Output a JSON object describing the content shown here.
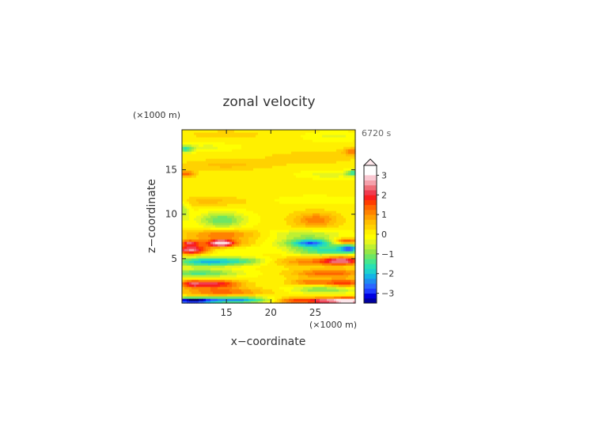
{
  "chart_data": {
    "type": "heatmap",
    "title": "zonal velocity",
    "xlabel": "x−coordinate",
    "ylabel": "z−coordinate",
    "x_unit": "(×1000 m)",
    "y_unit": "(×1000 m)",
    "time_label": "6720 s",
    "xlim": [
      10.0,
      29.5
    ],
    "ylim": [
      0.0,
      19.5
    ],
    "x_ticks": [
      15,
      20,
      25
    ],
    "x_tick_labels": [
      "15",
      "20",
      "25"
    ],
    "y_ticks": [
      5,
      10,
      15
    ],
    "y_tick_labels": [
      "5",
      "10",
      "15"
    ],
    "colorbar": {
      "min": -3.5,
      "max": 3.5,
      "step": 0.25,
      "tick_values": [
        3,
        2,
        1,
        0,
        -1,
        -2,
        -3
      ],
      "tick_labels": [
        "3",
        "2",
        "1",
        "0",
        "−1",
        "−2",
        "−3"
      ],
      "extend_max": true,
      "colors": [
        "#000066",
        "#0000a0",
        "#0000e0",
        "#1e3cff",
        "#2a66ff",
        "#1e8cf0",
        "#14b4e6",
        "#1ed2cc",
        "#28e0b4",
        "#46e68c",
        "#6ee664",
        "#96e646",
        "#bef032",
        "#e6f51e",
        "#ffff00",
        "#fff000",
        "#ffd200",
        "#ffbe00",
        "#ffa000",
        "#ff8200",
        "#ff6400",
        "#ff3c00",
        "#fa1e1e",
        "#f03c50",
        "#f06e78",
        "#f5a0aa",
        "#fac8d2",
        "#fde6ea"
      ]
    },
    "background_u": 0.08,
    "features": [
      {
        "x": 11.0,
        "z": 0.3,
        "sx": 2.5,
        "sz": 0.35,
        "u": -3.6
      },
      {
        "x": 16.0,
        "z": 0.4,
        "sx": 3.5,
        "sz": 0.35,
        "u": -2.5
      },
      {
        "x": 22.5,
        "z": 0.3,
        "sx": 2.0,
        "sz": 0.35,
        "u": 1.4
      },
      {
        "x": 26.5,
        "z": 0.3,
        "sx": 2.5,
        "sz": 0.35,
        "u": 2.6
      },
      {
        "x": 28.8,
        "z": 0.3,
        "sx": 1.2,
        "sz": 0.35,
        "u": 3.1
      },
      {
        "x": 14.5,
        "z": 1.3,
        "sx": 4.5,
        "sz": 0.45,
        "u": 1.3
      },
      {
        "x": 26.0,
        "z": 1.6,
        "sx": 3.5,
        "sz": 0.45,
        "u": -1.2
      },
      {
        "x": 13.5,
        "z": 2.2,
        "sx": 3.0,
        "sz": 0.45,
        "u": 2.0
      },
      {
        "x": 11.0,
        "z": 2.2,
        "sx": 1.2,
        "sz": 0.4,
        "u": 1.2
      },
      {
        "x": 28.0,
        "z": 2.3,
        "sx": 2.5,
        "sz": 0.45,
        "u": 1.7
      },
      {
        "x": 24.0,
        "z": 2.4,
        "sx": 2.0,
        "sz": 0.4,
        "u": 1.0
      },
      {
        "x": 12.0,
        "z": 3.4,
        "sx": 4.5,
        "sz": 0.45,
        "u": -1.4
      },
      {
        "x": 26.5,
        "z": 3.4,
        "sx": 4.0,
        "sz": 0.45,
        "u": 1.4
      },
      {
        "x": 13.0,
        "z": 4.7,
        "sx": 4.0,
        "sz": 0.5,
        "u": -2.2
      },
      {
        "x": 17.5,
        "z": 4.8,
        "sx": 2.5,
        "sz": 0.4,
        "u": -0.7
      },
      {
        "x": 24.0,
        "z": 4.7,
        "sx": 3.5,
        "sz": 0.5,
        "u": 1.0
      },
      {
        "x": 28.0,
        "z": 4.8,
        "sx": 2.2,
        "sz": 0.45,
        "u": 2.3
      },
      {
        "x": 11.0,
        "z": 6.0,
        "sx": 1.8,
        "sz": 0.45,
        "u": 2.4
      },
      {
        "x": 15.5,
        "z": 6.2,
        "sx": 3.5,
        "sz": 0.55,
        "u": -0.6
      },
      {
        "x": 26.0,
        "z": 5.9,
        "sx": 3.5,
        "sz": 0.5,
        "u": -1.5
      },
      {
        "x": 28.8,
        "z": 6.2,
        "sx": 1.2,
        "sz": 0.45,
        "u": -2.2
      },
      {
        "x": 14.0,
        "z": 6.7,
        "sx": 3.5,
        "sz": 0.6,
        "u": 1.5
      },
      {
        "x": 14.5,
        "z": 6.8,
        "sx": 1.2,
        "sz": 0.35,
        "u": 2.3
      },
      {
        "x": 24.5,
        "z": 6.8,
        "sx": 3.5,
        "sz": 0.55,
        "u": -1.8
      },
      {
        "x": 24.5,
        "z": 6.8,
        "sx": 1.5,
        "sz": 0.35,
        "u": -1.0
      },
      {
        "x": 10.8,
        "z": 6.8,
        "sx": 0.9,
        "sz": 0.3,
        "u": 1.6
      },
      {
        "x": 28.5,
        "z": 7.0,
        "sx": 1.5,
        "sz": 0.35,
        "u": 1.8
      },
      {
        "x": 14.5,
        "z": 7.8,
        "sx": 4.0,
        "sz": 0.5,
        "u": 1.1
      },
      {
        "x": 24.0,
        "z": 7.8,
        "sx": 4.0,
        "sz": 0.5,
        "u": -0.8
      },
      {
        "x": 14.5,
        "z": 9.4,
        "sx": 2.6,
        "sz": 0.9,
        "u": -1.3
      },
      {
        "x": 10.2,
        "z": 10.5,
        "sx": 0.6,
        "sz": 1.2,
        "u": -0.7
      },
      {
        "x": 25.0,
        "z": 9.4,
        "sx": 2.5,
        "sz": 0.9,
        "u": 1.1
      },
      {
        "x": 13.0,
        "z": 11.5,
        "sx": 4.5,
        "sz": 0.5,
        "u": 0.5
      },
      {
        "x": 25.0,
        "z": 11.6,
        "sx": 4.5,
        "sz": 0.5,
        "u": -0.3
      },
      {
        "x": 10.4,
        "z": 14.6,
        "sx": 1.0,
        "sz": 0.35,
        "u": 1.3
      },
      {
        "x": 29.3,
        "z": 14.7,
        "sx": 0.8,
        "sz": 0.35,
        "u": -1.5
      },
      {
        "x": 26.5,
        "z": 14.5,
        "sx": 3.0,
        "sz": 0.4,
        "u": -0.5
      },
      {
        "x": 15.0,
        "z": 15.6,
        "sx": 5.0,
        "sz": 0.6,
        "u": 0.5
      },
      {
        "x": 24.5,
        "z": 16.4,
        "sx": 5.0,
        "sz": 0.7,
        "u": 0.4
      },
      {
        "x": 10.4,
        "z": 17.4,
        "sx": 0.9,
        "sz": 0.4,
        "u": -1.5
      },
      {
        "x": 29.3,
        "z": 17.1,
        "sx": 1.2,
        "sz": 0.4,
        "u": 1.2
      },
      {
        "x": 13.0,
        "z": 17.6,
        "sx": 3.0,
        "sz": 0.4,
        "u": -0.4
      },
      {
        "x": 15.0,
        "z": 19.0,
        "sx": 5.0,
        "sz": 0.5,
        "u": 0.3
      },
      {
        "x": 27.0,
        "z": 18.8,
        "sx": 3.0,
        "sz": 0.5,
        "u": -0.4
      }
    ],
    "grid": false
  }
}
